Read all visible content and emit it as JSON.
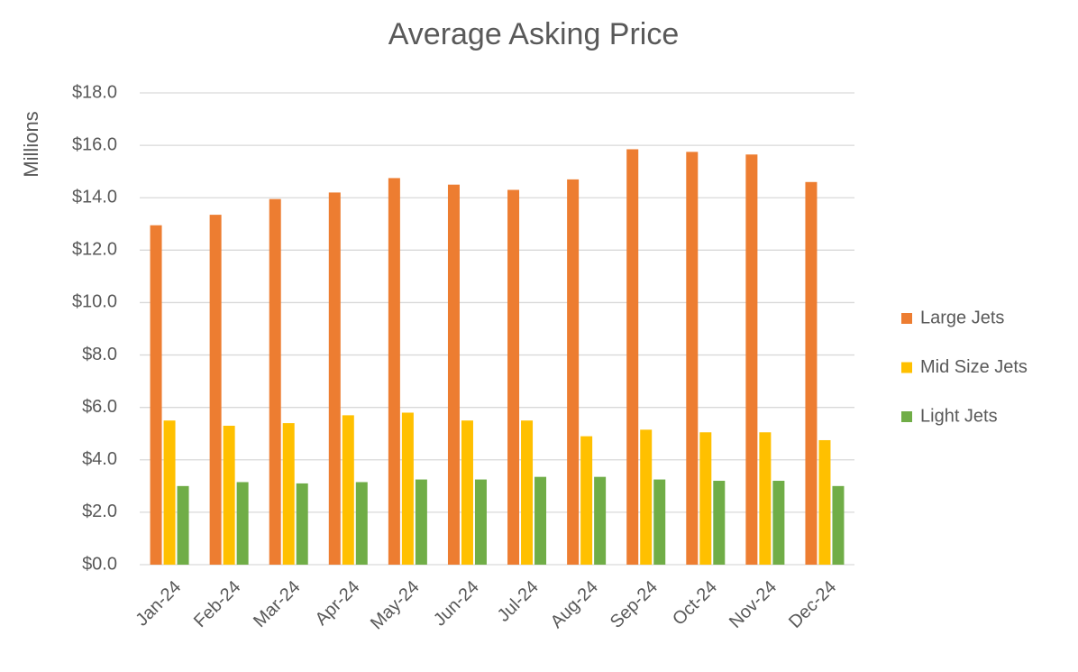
{
  "chart_data": {
    "type": "bar",
    "title": "Average Asking Price",
    "y_label": "Millions",
    "categories": [
      "Jan-24",
      "Feb-24",
      "Mar-24",
      "Apr-24",
      "May-24",
      "Jun-24",
      "Jul-24",
      "Aug-24",
      "Sep-24",
      "Oct-24",
      "Nov-24",
      "Dec-24"
    ],
    "series": [
      {
        "name": "Large Jets",
        "color": "#ED7D31",
        "values": [
          12.95,
          13.35,
          13.95,
          14.2,
          14.75,
          14.5,
          14.3,
          14.7,
          15.85,
          15.75,
          15.65,
          14.6
        ]
      },
      {
        "name": "Mid Size Jets",
        "color": "#FFC000",
        "values": [
          5.5,
          5.3,
          5.4,
          5.7,
          5.8,
          5.5,
          5.5,
          4.9,
          5.15,
          5.05,
          5.05,
          4.75
        ]
      },
      {
        "name": "Light Jets",
        "color": "#70AD47",
        "values": [
          3.0,
          3.15,
          3.1,
          3.15,
          3.25,
          3.25,
          3.35,
          3.35,
          3.25,
          3.2,
          3.2,
          3.0
        ]
      }
    ],
    "ylim": [
      0,
      18
    ],
    "yticks": [
      {
        "value": 0,
        "label": "$0.0"
      },
      {
        "value": 2,
        "label": "$2.0"
      },
      {
        "value": 4,
        "label": "$4.0"
      },
      {
        "value": 6,
        "label": "$6.0"
      },
      {
        "value": 8,
        "label": "$8.0"
      },
      {
        "value": 10,
        "label": "$10.0"
      },
      {
        "value": 12,
        "label": "$12.0"
      },
      {
        "value": 14,
        "label": "$14.0"
      },
      {
        "value": 16,
        "label": "$16.0"
      },
      {
        "value": 18,
        "label": "$18.0"
      }
    ],
    "grid": true,
    "legend": "right"
  }
}
